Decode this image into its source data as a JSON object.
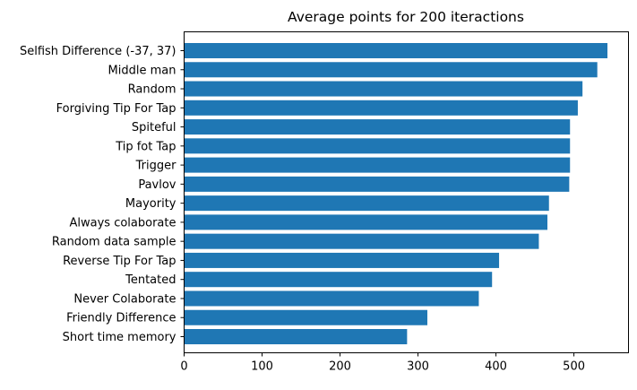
{
  "chart_data": {
    "type": "bar",
    "orientation": "horizontal",
    "title": "Average points for 200 iteractions",
    "xlabel": "",
    "ylabel": "",
    "xlim": [
      0,
      570
    ],
    "xticks": [
      0,
      100,
      200,
      300,
      400,
      500
    ],
    "grid": false,
    "bar_color": "#1f77b4",
    "categories": [
      "Selfish Difference (-37, 37)",
      "Middle man",
      "Random",
      "Forgiving Tip For Tap",
      "Spiteful",
      "Tip fot Tap",
      "Trigger",
      "Pavlov",
      "Mayority",
      "Always colaborate",
      "Random data sample",
      "Reverse Tip For Tap",
      "Tentated",
      "Never Colaborate",
      "Friendly Difference",
      "Short time memory"
    ],
    "values": [
      543,
      530,
      511,
      505,
      495,
      495,
      495,
      494,
      468,
      466,
      455,
      404,
      395,
      378,
      312,
      286
    ]
  }
}
